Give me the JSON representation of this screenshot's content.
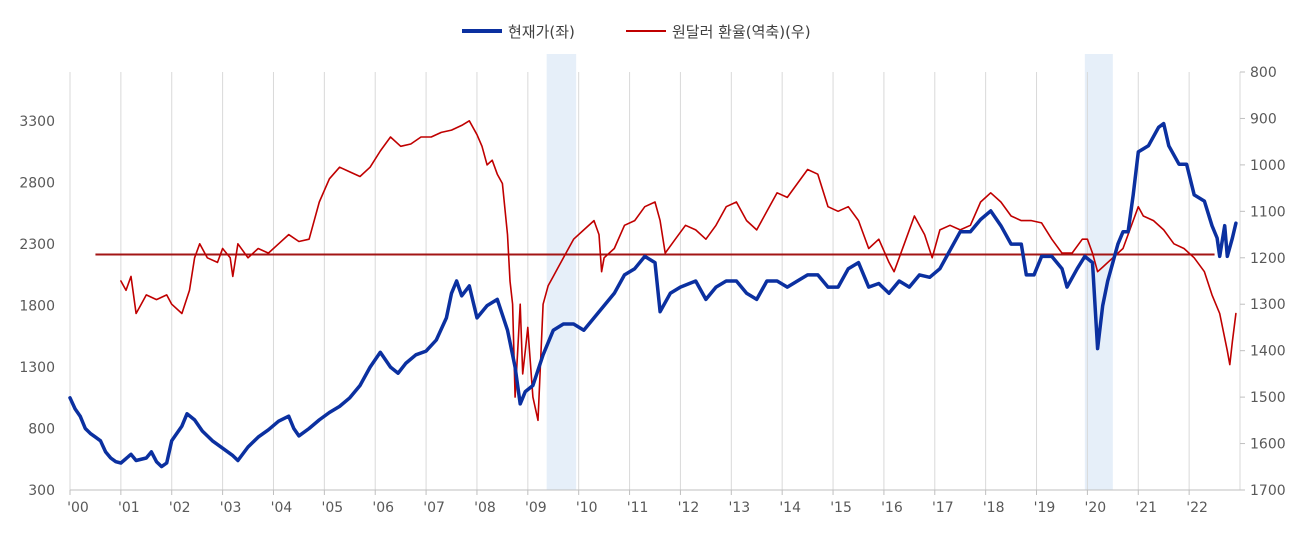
{
  "chart_data": {
    "type": "line",
    "legend": {
      "placement": "top-center"
    },
    "grid": {
      "vertical": true,
      "horizontal": false
    },
    "x_axis": {
      "ticks": [
        "'00",
        "'01",
        "'02",
        "'03",
        "'04",
        "'05",
        "'06",
        "'07",
        "'08",
        "'09",
        "'10",
        "'11",
        "'12",
        "'13",
        "'14",
        "'15",
        "'16",
        "'17",
        "'18",
        "'19",
        "'20",
        "'21",
        "'22"
      ],
      "range": [
        2000,
        2023
      ]
    },
    "y_left": {
      "ticks": [
        300,
        800,
        1300,
        1800,
        2300,
        2800,
        3300
      ],
      "range": [
        300,
        3700
      ]
    },
    "y_right": {
      "ticks": [
        800,
        900,
        1000,
        1100,
        1200,
        1300,
        1400,
        1500,
        1600,
        1700
      ],
      "range": [
        800,
        1700
      ],
      "inverted": true
    },
    "shaded_periods": [
      [
        2009.37,
        2009.95
      ],
      [
        2019.95,
        2020.5
      ]
    ],
    "reference_line": {
      "axis": "right",
      "value": 1193,
      "x_range": [
        2000.5,
        2022.5
      ],
      "color": "#a31515"
    },
    "series": [
      {
        "name": "현재가(좌)",
        "axis": "left",
        "color": "#0b30a0",
        "points": [
          [
            2000.0,
            1050
          ],
          [
            2000.1,
            960
          ],
          [
            2000.2,
            900
          ],
          [
            2000.3,
            800
          ],
          [
            2000.4,
            760
          ],
          [
            2000.5,
            730
          ],
          [
            2000.6,
            700
          ],
          [
            2000.7,
            610
          ],
          [
            2000.8,
            560
          ],
          [
            2000.9,
            530
          ],
          [
            2001.0,
            520
          ],
          [
            2001.2,
            590
          ],
          [
            2001.3,
            540
          ],
          [
            2001.5,
            560
          ],
          [
            2001.6,
            610
          ],
          [
            2001.7,
            530
          ],
          [
            2001.8,
            490
          ],
          [
            2001.9,
            520
          ],
          [
            2002.0,
            700
          ],
          [
            2002.2,
            820
          ],
          [
            2002.3,
            920
          ],
          [
            2002.45,
            870
          ],
          [
            2002.6,
            780
          ],
          [
            2002.8,
            700
          ],
          [
            2003.0,
            640
          ],
          [
            2003.2,
            580
          ],
          [
            2003.3,
            540
          ],
          [
            2003.5,
            650
          ],
          [
            2003.7,
            730
          ],
          [
            2003.9,
            790
          ],
          [
            2004.1,
            860
          ],
          [
            2004.3,
            900
          ],
          [
            2004.4,
            800
          ],
          [
            2004.5,
            740
          ],
          [
            2004.7,
            800
          ],
          [
            2004.9,
            870
          ],
          [
            2005.1,
            930
          ],
          [
            2005.3,
            980
          ],
          [
            2005.5,
            1050
          ],
          [
            2005.7,
            1150
          ],
          [
            2005.9,
            1300
          ],
          [
            2006.1,
            1420
          ],
          [
            2006.3,
            1300
          ],
          [
            2006.45,
            1250
          ],
          [
            2006.6,
            1330
          ],
          [
            2006.8,
            1400
          ],
          [
            2007.0,
            1430
          ],
          [
            2007.2,
            1520
          ],
          [
            2007.4,
            1700
          ],
          [
            2007.5,
            1900
          ],
          [
            2007.6,
            2000
          ],
          [
            2007.7,
            1880
          ],
          [
            2007.85,
            1960
          ],
          [
            2008.0,
            1700
          ],
          [
            2008.2,
            1800
          ],
          [
            2008.4,
            1850
          ],
          [
            2008.6,
            1600
          ],
          [
            2008.75,
            1300
          ],
          [
            2008.85,
            1000
          ],
          [
            2008.95,
            1100
          ],
          [
            2009.1,
            1150
          ],
          [
            2009.3,
            1400
          ],
          [
            2009.5,
            1600
          ],
          [
            2009.7,
            1650
          ],
          [
            2009.9,
            1650
          ],
          [
            2010.1,
            1600
          ],
          [
            2010.3,
            1700
          ],
          [
            2010.5,
            1800
          ],
          [
            2010.7,
            1900
          ],
          [
            2010.9,
            2050
          ],
          [
            2011.1,
            2100
          ],
          [
            2011.3,
            2200
          ],
          [
            2011.5,
            2150
          ],
          [
            2011.6,
            1750
          ],
          [
            2011.8,
            1900
          ],
          [
            2012.0,
            1950
          ],
          [
            2012.3,
            2000
          ],
          [
            2012.5,
            1850
          ],
          [
            2012.7,
            1950
          ],
          [
            2012.9,
            2000
          ],
          [
            2013.1,
            2000
          ],
          [
            2013.3,
            1900
          ],
          [
            2013.5,
            1850
          ],
          [
            2013.7,
            2000
          ],
          [
            2013.9,
            2000
          ],
          [
            2014.1,
            1950
          ],
          [
            2014.3,
            2000
          ],
          [
            2014.5,
            2050
          ],
          [
            2014.7,
            2050
          ],
          [
            2014.9,
            1950
          ],
          [
            2015.1,
            1950
          ],
          [
            2015.3,
            2100
          ],
          [
            2015.5,
            2150
          ],
          [
            2015.7,
            1950
          ],
          [
            2015.9,
            1980
          ],
          [
            2016.1,
            1900
          ],
          [
            2016.3,
            2000
          ],
          [
            2016.5,
            1950
          ],
          [
            2016.7,
            2050
          ],
          [
            2016.9,
            2030
          ],
          [
            2017.1,
            2100
          ],
          [
            2017.3,
            2250
          ],
          [
            2017.5,
            2400
          ],
          [
            2017.7,
            2400
          ],
          [
            2017.9,
            2500
          ],
          [
            2018.1,
            2570
          ],
          [
            2018.3,
            2450
          ],
          [
            2018.5,
            2300
          ],
          [
            2018.7,
            2300
          ],
          [
            2018.8,
            2050
          ],
          [
            2018.95,
            2050
          ],
          [
            2019.1,
            2200
          ],
          [
            2019.3,
            2200
          ],
          [
            2019.5,
            2100
          ],
          [
            2019.6,
            1950
          ],
          [
            2019.8,
            2100
          ],
          [
            2019.95,
            2200
          ],
          [
            2020.1,
            2150
          ],
          [
            2020.2,
            1450
          ],
          [
            2020.3,
            1800
          ],
          [
            2020.4,
            2000
          ],
          [
            2020.5,
            2150
          ],
          [
            2020.6,
            2300
          ],
          [
            2020.7,
            2400
          ],
          [
            2020.8,
            2400
          ],
          [
            2020.9,
            2700
          ],
          [
            2021.0,
            3050
          ],
          [
            2021.2,
            3100
          ],
          [
            2021.4,
            3250
          ],
          [
            2021.5,
            3280
          ],
          [
            2021.6,
            3100
          ],
          [
            2021.8,
            2950
          ],
          [
            2021.95,
            2950
          ],
          [
            2022.1,
            2700
          ],
          [
            2022.3,
            2650
          ],
          [
            2022.45,
            2450
          ],
          [
            2022.55,
            2350
          ],
          [
            2022.6,
            2200
          ],
          [
            2022.7,
            2450
          ],
          [
            2022.75,
            2200
          ],
          [
            2022.85,
            2350
          ],
          [
            2022.92,
            2470
          ]
        ]
      },
      {
        "name": "원달러 환율(역축)(우)",
        "axis": "right",
        "color": "#c00000",
        "points": [
          [
            2001.0,
            1250
          ],
          [
            2001.1,
            1270
          ],
          [
            2001.2,
            1240
          ],
          [
            2001.3,
            1320
          ],
          [
            2001.4,
            1300
          ],
          [
            2001.5,
            1280
          ],
          [
            2001.7,
            1290
          ],
          [
            2001.9,
            1280
          ],
          [
            2002.0,
            1300
          ],
          [
            2002.2,
            1320
          ],
          [
            2002.35,
            1270
          ],
          [
            2002.45,
            1200
          ],
          [
            2002.55,
            1170
          ],
          [
            2002.7,
            1200
          ],
          [
            2002.9,
            1210
          ],
          [
            2003.0,
            1180
          ],
          [
            2003.15,
            1200
          ],
          [
            2003.2,
            1240
          ],
          [
            2003.3,
            1170
          ],
          [
            2003.5,
            1200
          ],
          [
            2003.7,
            1180
          ],
          [
            2003.9,
            1190
          ],
          [
            2004.1,
            1170
          ],
          [
            2004.3,
            1150
          ],
          [
            2004.5,
            1165
          ],
          [
            2004.7,
            1160
          ],
          [
            2004.9,
            1080
          ],
          [
            2005.1,
            1030
          ],
          [
            2005.3,
            1005
          ],
          [
            2005.5,
            1015
          ],
          [
            2005.7,
            1025
          ],
          [
            2005.9,
            1005
          ],
          [
            2006.1,
            970
          ],
          [
            2006.3,
            940
          ],
          [
            2006.5,
            960
          ],
          [
            2006.7,
            955
          ],
          [
            2006.9,
            940
          ],
          [
            2007.1,
            940
          ],
          [
            2007.3,
            930
          ],
          [
            2007.5,
            925
          ],
          [
            2007.7,
            915
          ],
          [
            2007.85,
            905
          ],
          [
            2008.0,
            935
          ],
          [
            2008.1,
            960
          ],
          [
            2008.2,
            1000
          ],
          [
            2008.3,
            990
          ],
          [
            2008.4,
            1020
          ],
          [
            2008.5,
            1040
          ],
          [
            2008.6,
            1150
          ],
          [
            2008.65,
            1250
          ],
          [
            2008.7,
            1300
          ],
          [
            2008.75,
            1500
          ],
          [
            2008.8,
            1400
          ],
          [
            2008.85,
            1300
          ],
          [
            2008.9,
            1450
          ],
          [
            2008.95,
            1400
          ],
          [
            2009.0,
            1350
          ],
          [
            2009.1,
            1500
          ],
          [
            2009.2,
            1550
          ],
          [
            2009.3,
            1300
          ],
          [
            2009.4,
            1260
          ],
          [
            2009.5,
            1240
          ],
          [
            2009.6,
            1220
          ],
          [
            2009.8,
            1180
          ],
          [
            2009.9,
            1160
          ],
          [
            2010.1,
            1140
          ],
          [
            2010.3,
            1120
          ],
          [
            2010.4,
            1150
          ],
          [
            2010.45,
            1230
          ],
          [
            2010.5,
            1200
          ],
          [
            2010.7,
            1180
          ],
          [
            2010.9,
            1130
          ],
          [
            2011.1,
            1120
          ],
          [
            2011.3,
            1090
          ],
          [
            2011.5,
            1080
          ],
          [
            2011.6,
            1120
          ],
          [
            2011.7,
            1190
          ],
          [
            2011.9,
            1160
          ],
          [
            2012.1,
            1130
          ],
          [
            2012.3,
            1140
          ],
          [
            2012.5,
            1160
          ],
          [
            2012.7,
            1130
          ],
          [
            2012.9,
            1090
          ],
          [
            2013.1,
            1080
          ],
          [
            2013.3,
            1120
          ],
          [
            2013.5,
            1140
          ],
          [
            2013.7,
            1100
          ],
          [
            2013.9,
            1060
          ],
          [
            2014.1,
            1070
          ],
          [
            2014.3,
            1040
          ],
          [
            2014.5,
            1010
          ],
          [
            2014.7,
            1020
          ],
          [
            2014.9,
            1090
          ],
          [
            2015.1,
            1100
          ],
          [
            2015.3,
            1090
          ],
          [
            2015.5,
            1120
          ],
          [
            2015.7,
            1180
          ],
          [
            2015.9,
            1160
          ],
          [
            2016.1,
            1210
          ],
          [
            2016.2,
            1230
          ],
          [
            2016.4,
            1170
          ],
          [
            2016.6,
            1110
          ],
          [
            2016.8,
            1150
          ],
          [
            2016.95,
            1200
          ],
          [
            2017.1,
            1140
          ],
          [
            2017.3,
            1130
          ],
          [
            2017.5,
            1140
          ],
          [
            2017.7,
            1130
          ],
          [
            2017.9,
            1080
          ],
          [
            2018.0,
            1070
          ],
          [
            2018.1,
            1060
          ],
          [
            2018.3,
            1080
          ],
          [
            2018.5,
            1110
          ],
          [
            2018.7,
            1120
          ],
          [
            2018.9,
            1120
          ],
          [
            2019.1,
            1125
          ],
          [
            2019.3,
            1160
          ],
          [
            2019.5,
            1190
          ],
          [
            2019.7,
            1190
          ],
          [
            2019.9,
            1160
          ],
          [
            2020.0,
            1160
          ],
          [
            2020.1,
            1190
          ],
          [
            2020.2,
            1230
          ],
          [
            2020.3,
            1220
          ],
          [
            2020.5,
            1200
          ],
          [
            2020.7,
            1180
          ],
          [
            2020.9,
            1120
          ],
          [
            2021.0,
            1090
          ],
          [
            2021.1,
            1110
          ],
          [
            2021.3,
            1120
          ],
          [
            2021.5,
            1140
          ],
          [
            2021.7,
            1170
          ],
          [
            2021.9,
            1180
          ],
          [
            2022.1,
            1200
          ],
          [
            2022.3,
            1230
          ],
          [
            2022.45,
            1280
          ],
          [
            2022.6,
            1320
          ],
          [
            2022.75,
            1400
          ],
          [
            2022.8,
            1430
          ],
          [
            2022.85,
            1380
          ],
          [
            2022.92,
            1320
          ]
        ]
      }
    ]
  }
}
